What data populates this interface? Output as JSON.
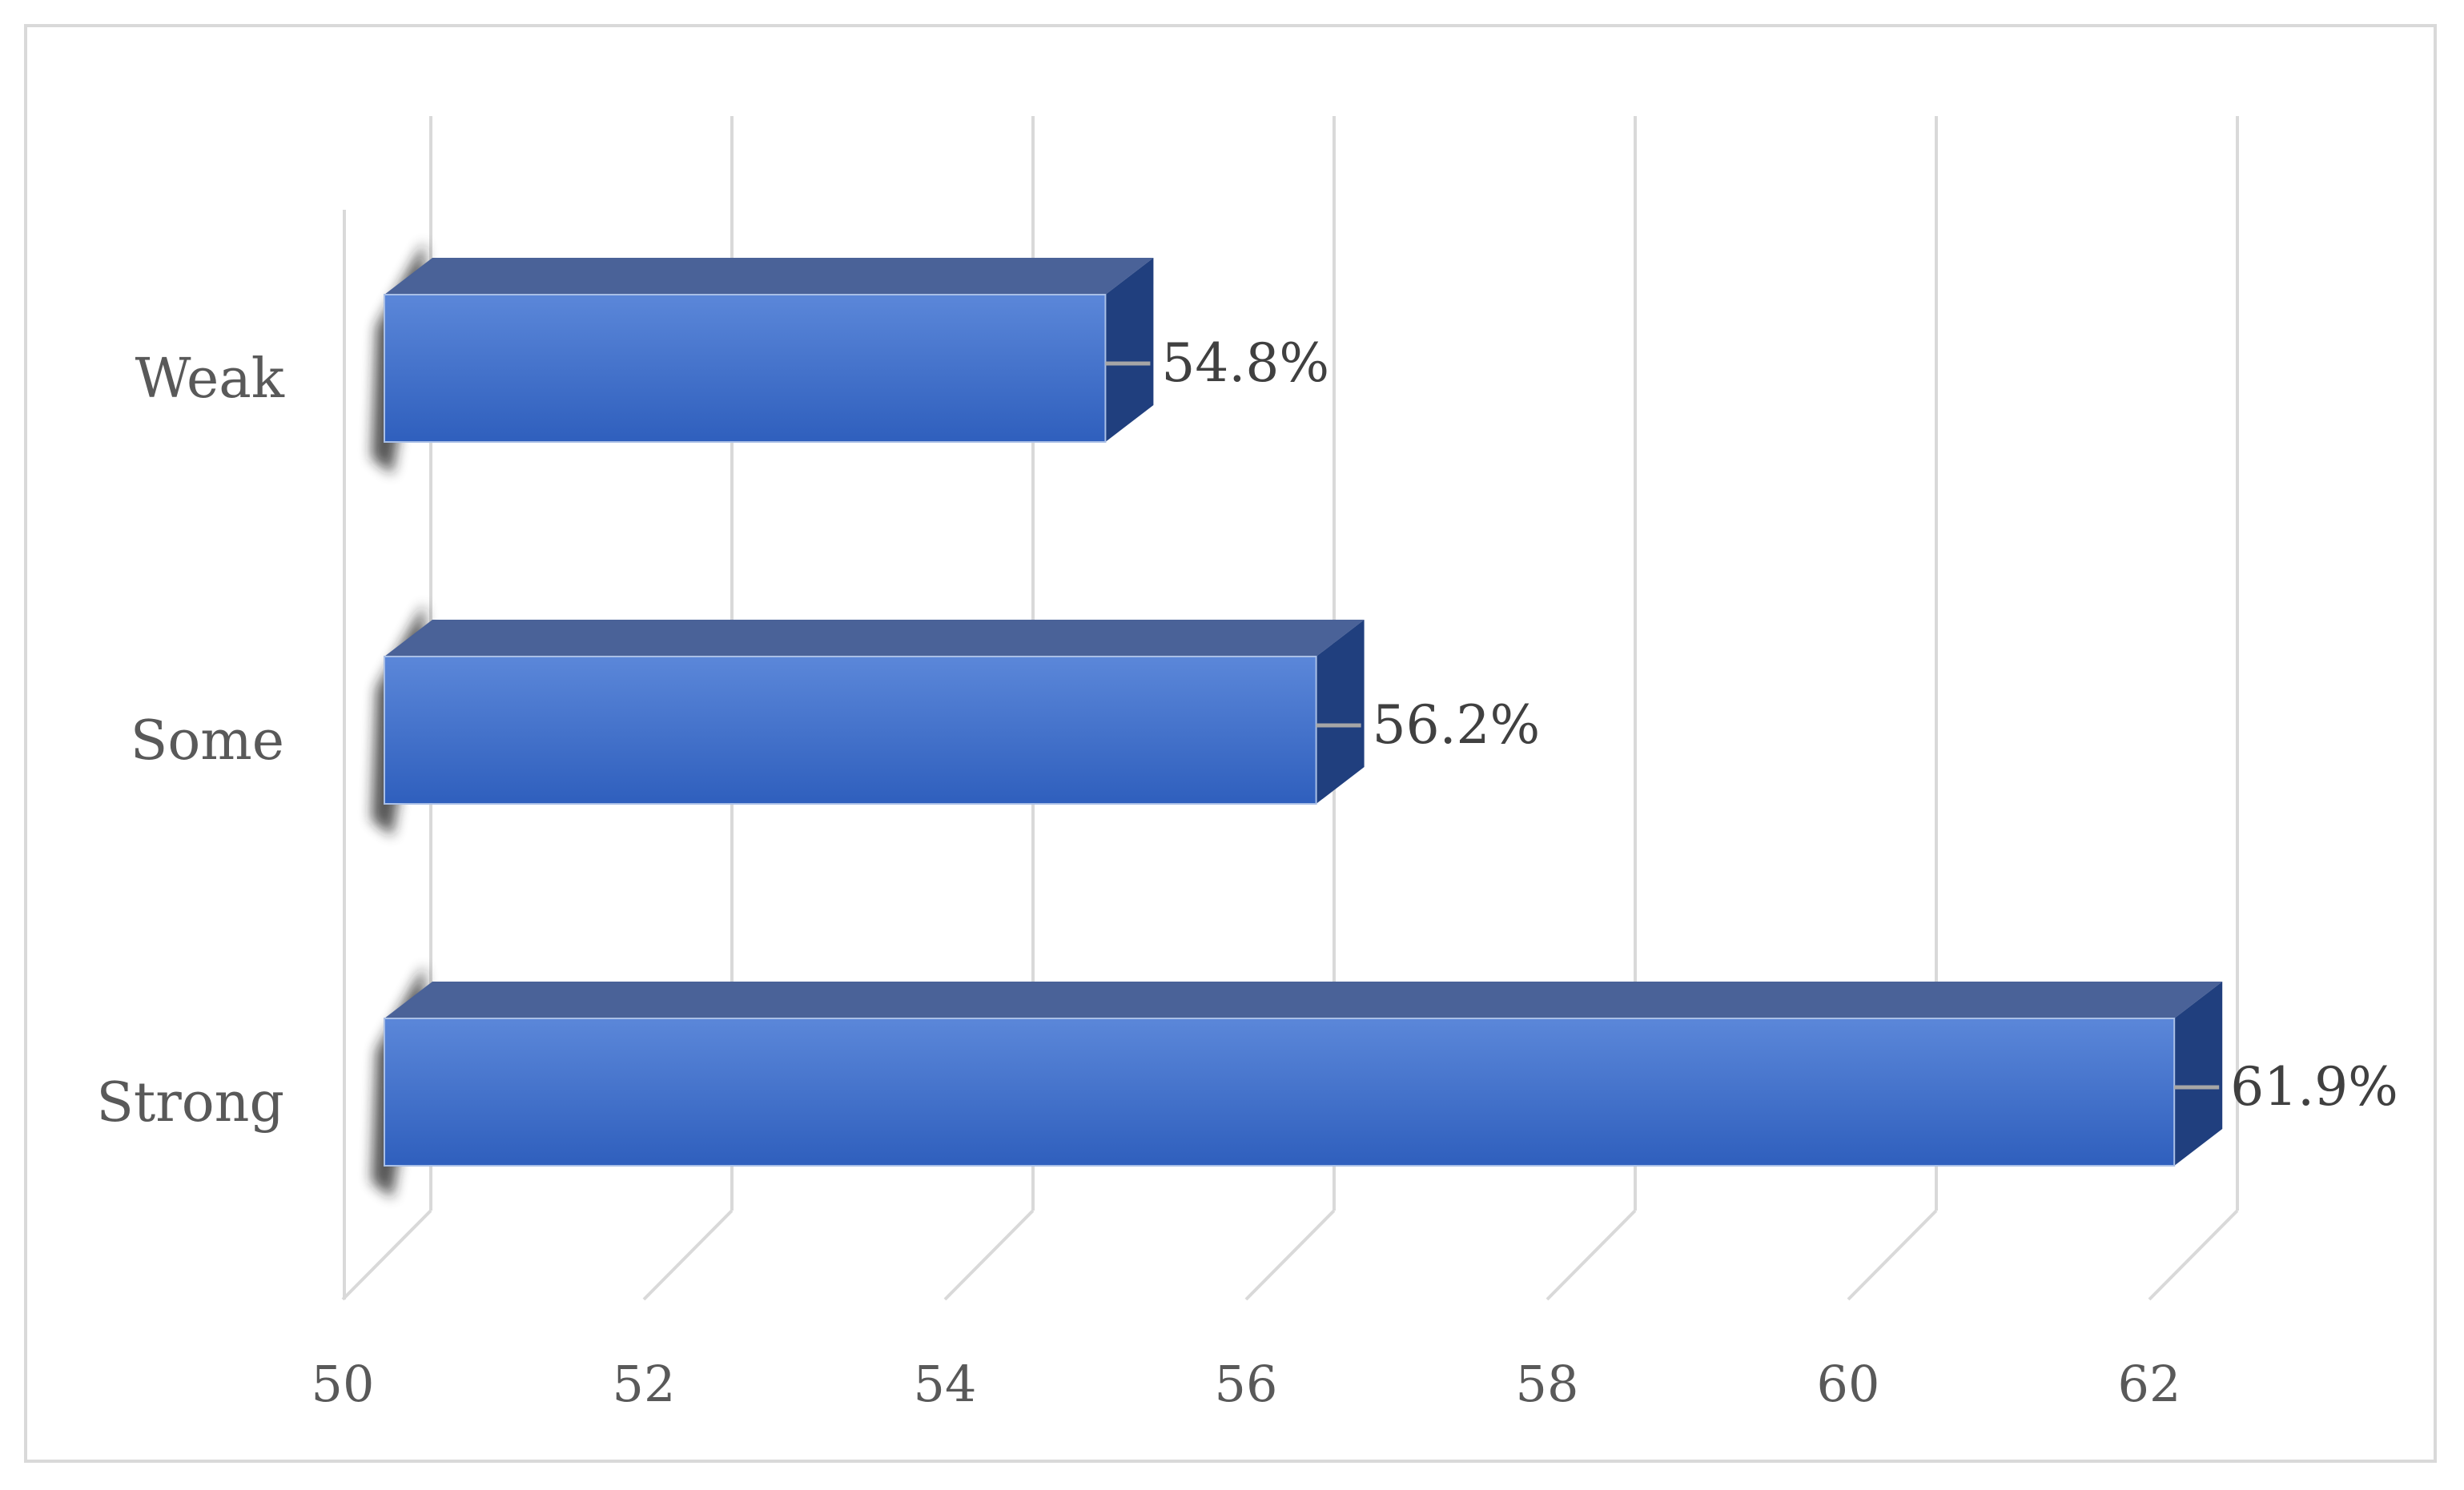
{
  "chart_data": {
    "type": "bar",
    "orientation": "horizontal",
    "style": "3d",
    "categories": [
      "Weak",
      "Some",
      "Strong"
    ],
    "values": [
      54.8,
      56.2,
      61.9
    ],
    "data_labels": [
      "54.8%",
      "56.2%",
      "61.9%"
    ],
    "xlim": [
      50,
      62
    ],
    "xticks": [
      "50",
      "52",
      "54",
      "56",
      "58",
      "60",
      "62"
    ],
    "title": "",
    "xlabel": "",
    "ylabel": "",
    "grid": true,
    "legend": "none",
    "colors": {
      "bar_front_top": "#5b87d9",
      "bar_front_bottom": "#2f5fbd",
      "bar_top": "#4a6298",
      "bar_side": "#203f7e",
      "grid": "#d9d9d9",
      "text": "#595959"
    }
  }
}
